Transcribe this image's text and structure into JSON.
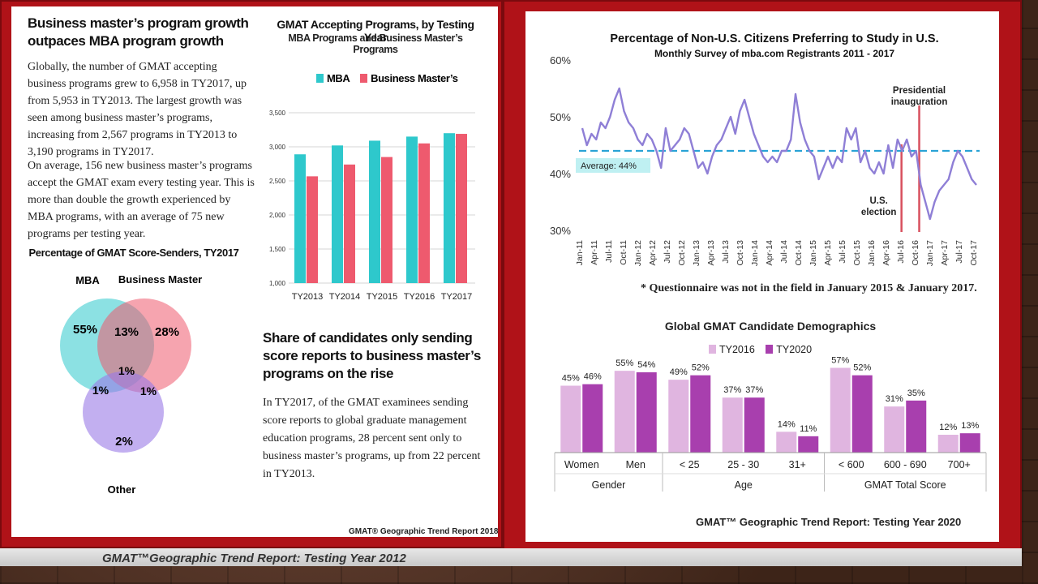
{
  "colors": {
    "frame_red": "#b01218",
    "mba_teal": "#2ec8cc",
    "bm_pink": "#ee5a6e",
    "line_purple": "#8f7fd6",
    "avg_blue": "#2aa3d6",
    "inaug_red": "#d8505e",
    "ty2016": "#e0b5e0",
    "ty2020": "#a83fae"
  },
  "left": {
    "headline": "Business master’s program growth outpaces MBA program growth",
    "para1": "Globally, the number of GMAT accepting business programs grew to 6,958 in TY2017, up from 5,953 in TY2013. The largest growth was seen among business master’s programs, increasing from 2,567 programs in TY2013 to 3,190 programs in TY2017.",
    "para2": "On average, 156 new business master’s programs accept the GMAT exam every testing year. This is more than double the growth experienced by MBA programs, with an average of 75 new programs per testing year.",
    "share_heading": "Share of candidates only sending score reports to business master’s programs on the rise",
    "share_para": "In TY2017, of the GMAT examinees sending score reports to global graduate management education programs, 28 percent sent only to business master’s programs, up from 22 percent in TY2013.",
    "footer": "GMAT® Geographic Trend Report 2018"
  },
  "bottom_caption": "GMAT™Geographic Trend Report: Testing Year 2012",
  "bottom_right_footer": "GMAT™ Geographic Trend Report: Testing Year 2020",
  "chart_data": [
    {
      "type": "bar",
      "title": "GMAT Accepting Programs, by Testing Year",
      "subtitle": "MBA Programs and Business Master’s Programs",
      "categories": [
        "TY2013",
        "TY2014",
        "TY2015",
        "TY2016",
        "TY2017"
      ],
      "series": [
        {
          "name": "MBA",
          "values": [
            2890,
            3020,
            3090,
            3150,
            3200
          ]
        },
        {
          "name": "Business Master’s",
          "values": [
            2567,
            2740,
            2850,
            3050,
            3190
          ]
        }
      ],
      "yticks": [
        "1,000",
        "1,500",
        "2,000",
        "2,500",
        "3,000",
        "3,500"
      ],
      "ylim": [
        1000,
        3500
      ],
      "grid": true,
      "legend": "top"
    },
    {
      "type": "venn",
      "title": "Percentage of GMAT Score-Senders, TY2017",
      "sets": [
        {
          "name": "MBA",
          "only": "55%"
        },
        {
          "name": "Business Master’s",
          "only": "28%"
        },
        {
          "name": "Other",
          "only": "2%"
        }
      ],
      "overlaps": {
        "mba_bm": "13%",
        "mba_other": "1%",
        "bm_other": "1%",
        "all": "1%"
      }
    },
    {
      "type": "line",
      "title": "Percentage of Non-U.S. Citizens Preferring to Study in U.S.",
      "subtitle": "Monthly Survey of mba.com Registrants 2011 - 2017",
      "yticks": [
        "30%",
        "40%",
        "50%",
        "60%"
      ],
      "ylim": [
        30,
        60
      ],
      "xticks": [
        "Jan-11",
        "Apr-11",
        "Jul-11",
        "Oct-11",
        "Jan-12",
        "Apr-12",
        "Jul-12",
        "Oct-12",
        "Jan-13",
        "Apr-13",
        "Jul-13",
        "Oct-13",
        "Jan-14",
        "Apr-14",
        "Jul-14",
        "Oct-14",
        "Jan-15",
        "Apr-15",
        "Jul-15",
        "Oct-15",
        "Jan-16",
        "Apr-16",
        "Jul-16",
        "Oct-16",
        "Jan-17",
        "Apr-17",
        "Jul-17",
        "Oct-17"
      ],
      "values": [
        48,
        45,
        47,
        46,
        49,
        48,
        50,
        53,
        55,
        51,
        49,
        48,
        46,
        45,
        47,
        46,
        44,
        41,
        48,
        44,
        45,
        46,
        48,
        47,
        44,
        41,
        42,
        40,
        43,
        45,
        46,
        48,
        50,
        47,
        51,
        53,
        50,
        47,
        45,
        43,
        42,
        43,
        42,
        44,
        44,
        46,
        54,
        49,
        46,
        44,
        43,
        39,
        41,
        43,
        41,
        43,
        42,
        48,
        46,
        48,
        42,
        44,
        41,
        40,
        42,
        40,
        45,
        41,
        46,
        44,
        46,
        43,
        44,
        38,
        35,
        32,
        35,
        37,
        38,
        39,
        42,
        44,
        43,
        41,
        39,
        38
      ],
      "average": {
        "value": 44,
        "label": "Average: 44%"
      },
      "annotations": {
        "inauguration": "Presidential inauguration",
        "election": "U.S. election"
      },
      "footnote": "* Questionnaire was not in the field in January 2015 & January 2017."
    },
    {
      "type": "bar",
      "title": "Global GMAT Candidate Demographics",
      "categories": [
        "Women",
        "Men",
        "< 25",
        "25 - 30",
        "31+",
        "< 600",
        "600 - 690",
        "700+"
      ],
      "groups": [
        {
          "name": "Gender",
          "span": 2
        },
        {
          "name": "Age",
          "span": 3
        },
        {
          "name": "GMAT Total Score",
          "span": 3
        }
      ],
      "series": [
        {
          "name": "TY2016",
          "values": [
            45,
            55,
            49,
            37,
            14,
            57,
            31,
            12
          ],
          "labels": [
            "45%",
            "55%",
            "49%",
            "37%",
            "14%",
            "57%",
            "31%",
            "12%"
          ]
        },
        {
          "name": "TY2020",
          "values": [
            46,
            54,
            52,
            37,
            11,
            52,
            35,
            13
          ],
          "labels": [
            "46%",
            "54%",
            "52%",
            "37%",
            "11%",
            "52%",
            "35%",
            "13%"
          ]
        }
      ],
      "legend": "top"
    }
  ]
}
